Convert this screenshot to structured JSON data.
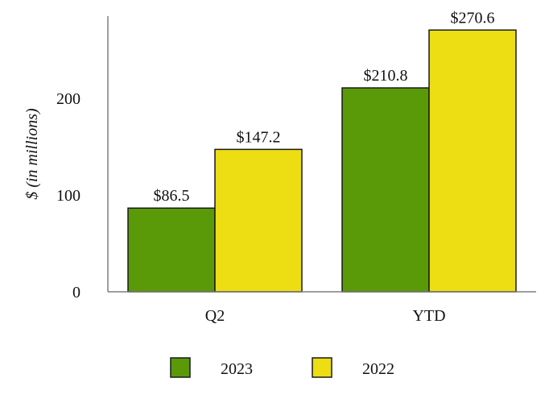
{
  "chart_data": {
    "type": "bar",
    "title": "",
    "xlabel": "",
    "ylabel": "$ (in millions)",
    "categories": [
      "Q2",
      "YTD"
    ],
    "series": [
      {
        "name": "2023",
        "values": [
          86.5,
          210.8
        ],
        "labels": [
          "$86.5",
          "$210.8"
        ],
        "color": "#5a9a08"
      },
      {
        "name": "2022",
        "values": [
          147.2,
          270.6
        ],
        "labels": [
          "$147.2",
          "$270.6"
        ],
        "color": "#eddd13"
      }
    ],
    "ylim": [
      0,
      285
    ],
    "yticks": [
      0,
      100,
      200
    ],
    "grid": false,
    "legend_position": "bottom"
  }
}
